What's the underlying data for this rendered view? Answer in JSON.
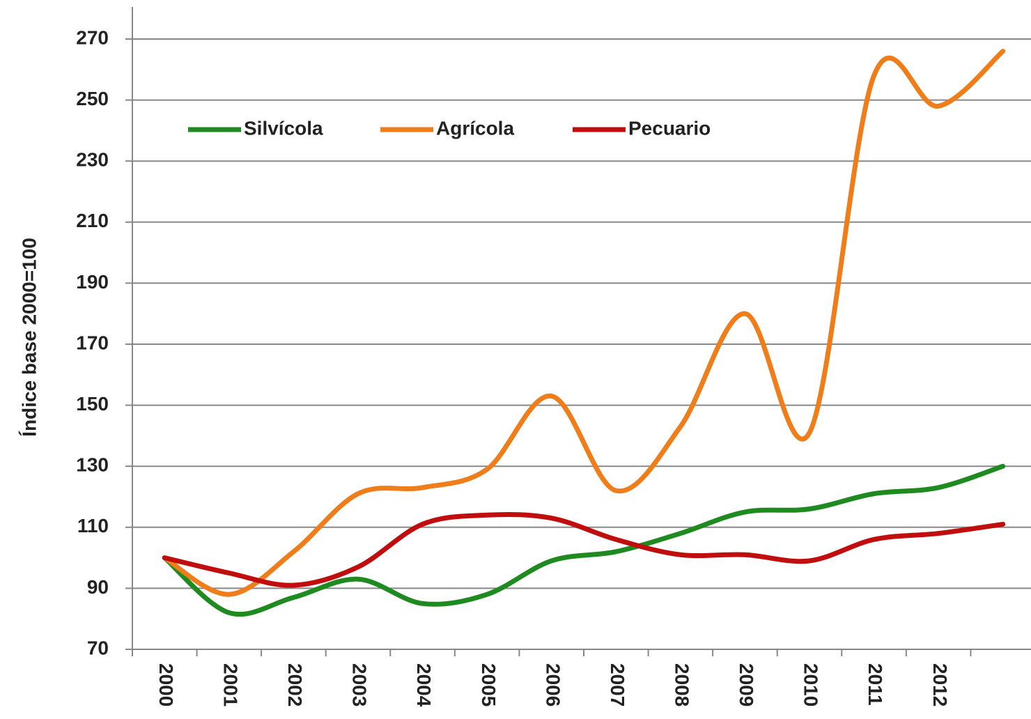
{
  "chart_data": {
    "type": "line",
    "y_label": "Índice base 2000=100",
    "categories": [
      "2000",
      "2001",
      "2002",
      "2003",
      "2004",
      "2005",
      "2006",
      "2007",
      "2008",
      "2009",
      "2010",
      "2011",
      "2012",
      null
    ],
    "series": [
      {
        "name": "Silvícola",
        "color": "#1f8a1f",
        "values": [
          100,
          82,
          87,
          93,
          85,
          88,
          99,
          102,
          108,
          115,
          116,
          121,
          123,
          130
        ]
      },
      {
        "name": "Agrícola",
        "color": "#ef7d1a",
        "values": [
          100,
          88,
          102,
          121,
          123,
          129,
          153,
          122,
          143,
          180,
          141,
          258,
          248,
          266
        ]
      },
      {
        "name": "Pecuario",
        "color": "#c00d0d",
        "values": [
          100,
          95,
          91,
          97,
          111,
          114,
          113,
          106,
          101,
          101,
          99,
          106,
          108,
          111
        ]
      }
    ],
    "ylim": [
      70,
      270
    ],
    "yticks": [
      70,
      90,
      110,
      130,
      150,
      170,
      190,
      210,
      230,
      250,
      270
    ],
    "grid": true,
    "legend": "top-left"
  }
}
